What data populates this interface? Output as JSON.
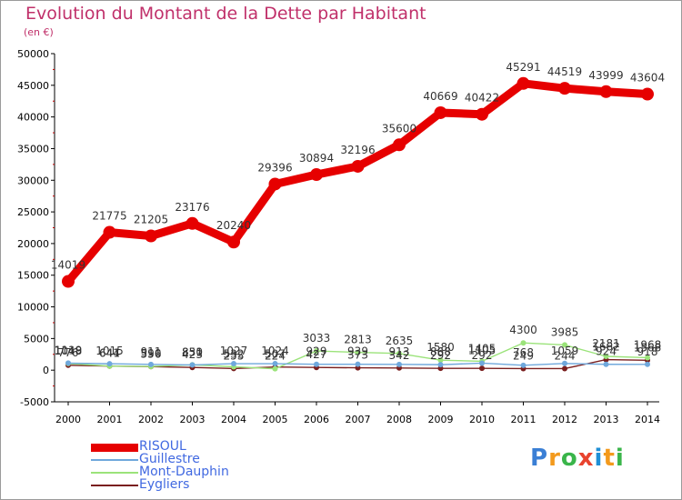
{
  "title": "Evolution du Montant de la Dette par Habitant",
  "unit": "(en €)",
  "colors": {
    "title": "#c0306a",
    "RISOUL": "#e60000",
    "Guillestre": "#6fa8dc",
    "Mont-Dauphin": "#9be37a",
    "Eygliers": "#7a1f1f"
  },
  "logo": {
    "letters": [
      "P",
      "r",
      "o",
      "x",
      "i",
      "t",
      "i"
    ],
    "letter_colors": [
      "#3a7fd5",
      "#f39a1d",
      "#3ab54a",
      "#e8432e",
      "#1f8fd6",
      "#f39a1d",
      "#3ab54a"
    ]
  },
  "chart_data": {
    "type": "line",
    "title": "Evolution du Montant de la Dette par Habitant",
    "subtitle": "(en €)",
    "x": [
      "2000",
      "2001",
      "2002",
      "2003",
      "2004",
      "2005",
      "2006",
      "2007",
      "2008",
      "2009",
      "2010",
      "2011",
      "2012",
      "2013",
      "2014"
    ],
    "yticks": [
      "-5000",
      "0",
      "5000",
      "10000",
      "15000",
      "20000",
      "25000",
      "30000",
      "35000",
      "40000",
      "45000",
      "50000"
    ],
    "ylim": [
      -5000,
      50000
    ],
    "grid": false,
    "legend": "bottom-left",
    "series": [
      {
        "name": "RISOUL",
        "values": [
          14019,
          21775,
          21205,
          23176,
          20240,
          29396,
          30894,
          32196,
          35600,
          40669,
          40422,
          45291,
          44519,
          43999,
          43604
        ],
        "labels": [
          "14019",
          "21775",
          "21205",
          "23176",
          "20240",
          "29396",
          "30894",
          "32196",
          "35600",
          "40669",
          "40422",
          "45291",
          "44519",
          "43999",
          "43604"
        ]
      },
      {
        "name": "Guillestre",
        "values": [
          1119,
          1015,
          911,
          831,
          1027,
          1024,
          929,
          939,
          913,
          868,
          1105,
          768,
          1059,
          924,
          918
        ],
        "labels": [
          "1119",
          "1015",
          "911",
          "831",
          "1027",
          "1024",
          "929",
          "939",
          "913",
          "868",
          "1105",
          "768",
          "1059",
          "924",
          "918"
        ]
      },
      {
        "name": "Mont-Dauphin",
        "values": [
          1048,
          641,
          590,
          850,
          532,
          224,
          3033,
          2813,
          2635,
          1580,
          1405,
          4300,
          3985,
          2181,
          1968
        ],
        "labels": [
          "1048",
          "641",
          "590",
          "850",
          "532",
          "224",
          "3033",
          "2813",
          "2635",
          "1580",
          "1405",
          "4300",
          "3985",
          "2181",
          "1968"
        ]
      },
      {
        "name": "Eygliers",
        "values": [
          776,
          644,
          556,
          423,
          255,
          507,
          427,
          373,
          342,
          292,
          292,
          249,
          244,
          1662,
          1568
        ],
        "labels": [
          "776",
          "644",
          "556",
          "423",
          "255",
          "507",
          "427",
          "373",
          "342",
          "292",
          "292",
          "249",
          "244",
          "1662",
          "1568"
        ]
      }
    ]
  }
}
